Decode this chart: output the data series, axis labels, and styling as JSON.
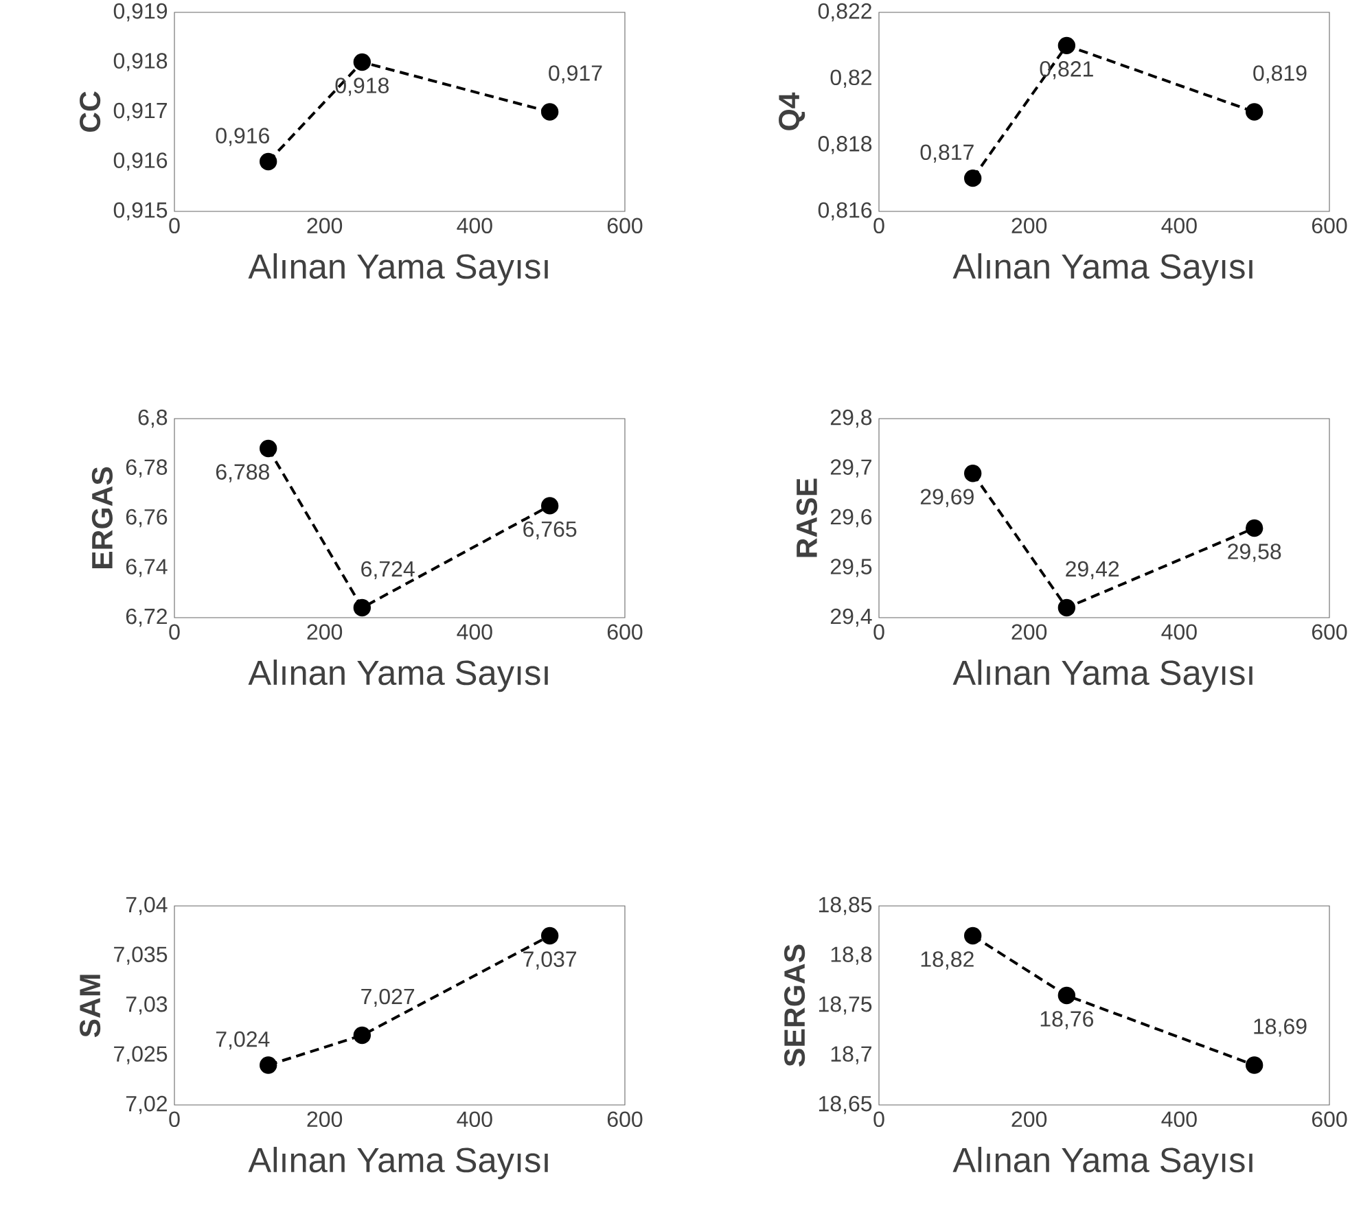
{
  "chart_data": [
    {
      "type": "line",
      "ylabel": "CC",
      "xlabel": "Alınan Yama Sayısı",
      "x": [
        125,
        250,
        500
      ],
      "values": [
        0.916,
        0.918,
        0.917
      ],
      "value_labels": [
        "0,916",
        "0,918",
        "0,917"
      ],
      "color": "#000000",
      "marker": "circle",
      "line_style": "dashed",
      "xlim": [
        0,
        600
      ],
      "xticks": [
        0,
        200,
        400,
        600
      ],
      "ylim": [
        0.915,
        0.919
      ],
      "yticks": [
        {
          "value": 0.915,
          "label": "0,915"
        },
        {
          "value": 0.916,
          "label": "0,916"
        },
        {
          "value": 0.917,
          "label": "0,917"
        },
        {
          "value": 0.918,
          "label": "0,918"
        },
        {
          "value": 0.919,
          "label": "0,919"
        }
      ]
    },
    {
      "type": "line",
      "ylabel": "Q4",
      "xlabel": "Alınan Yama Sayısı",
      "x": [
        125,
        250,
        500
      ],
      "values": [
        0.817,
        0.821,
        0.819
      ],
      "value_labels": [
        "0,817",
        "0,821",
        "0,819"
      ],
      "color": "#000000",
      "marker": "circle",
      "line_style": "dashed",
      "xlim": [
        0,
        600
      ],
      "xticks": [
        0,
        200,
        400,
        600
      ],
      "ylim": [
        0.816,
        0.822
      ],
      "yticks": [
        {
          "value": 0.816,
          "label": "0,816"
        },
        {
          "value": 0.818,
          "label": "0,818"
        },
        {
          "value": 0.82,
          "label": "0,82"
        },
        {
          "value": 0.822,
          "label": "0,822"
        }
      ]
    },
    {
      "type": "line",
      "ylabel": "ERGAS",
      "xlabel": "Alınan Yama Sayısı",
      "x": [
        125,
        250,
        500
      ],
      "values": [
        6.788,
        6.724,
        6.765
      ],
      "value_labels": [
        "6,788",
        "6,724",
        "6,765"
      ],
      "color": "#000000",
      "marker": "circle",
      "line_style": "dashed",
      "xlim": [
        0,
        600
      ],
      "xticks": [
        0,
        200,
        400,
        600
      ],
      "ylim": [
        6.72,
        6.8
      ],
      "yticks": [
        {
          "value": 6.72,
          "label": "6,72"
        },
        {
          "value": 6.74,
          "label": "6,74"
        },
        {
          "value": 6.76,
          "label": "6,76"
        },
        {
          "value": 6.78,
          "label": "6,78"
        },
        {
          "value": 6.8,
          "label": "6,8"
        }
      ]
    },
    {
      "type": "line",
      "ylabel": "RASE",
      "xlabel": "Alınan Yama Sayısı",
      "x": [
        125,
        250,
        500
      ],
      "values": [
        29.69,
        29.42,
        29.58
      ],
      "value_labels": [
        "29,69",
        "29,42",
        "29,58"
      ],
      "color": "#000000",
      "marker": "circle",
      "line_style": "dashed",
      "xlim": [
        0,
        600
      ],
      "xticks": [
        0,
        200,
        400,
        600
      ],
      "ylim": [
        29.4,
        29.8
      ],
      "yticks": [
        {
          "value": 29.4,
          "label": "29,4"
        },
        {
          "value": 29.5,
          "label": "29,5"
        },
        {
          "value": 29.6,
          "label": "29,6"
        },
        {
          "value": 29.7,
          "label": "29,7"
        },
        {
          "value": 29.8,
          "label": "29,8"
        }
      ]
    },
    {
      "type": "line",
      "ylabel": "SAM",
      "xlabel": "Alınan Yama Sayısı",
      "x": [
        125,
        250,
        500
      ],
      "values": [
        7.024,
        7.027,
        7.037
      ],
      "value_labels": [
        "7,024",
        "7,027",
        "7,037"
      ],
      "color": "#000000",
      "marker": "circle",
      "line_style": "dashed",
      "xlim": [
        0,
        600
      ],
      "xticks": [
        0,
        200,
        400,
        600
      ],
      "ylim": [
        7.02,
        7.04
      ],
      "yticks": [
        {
          "value": 7.02,
          "label": "7,02"
        },
        {
          "value": 7.025,
          "label": "7,025"
        },
        {
          "value": 7.03,
          "label": "7,03"
        },
        {
          "value": 7.035,
          "label": "7,035"
        },
        {
          "value": 7.04,
          "label": "7,04"
        }
      ]
    },
    {
      "type": "line",
      "ylabel": "SERGAS",
      "xlabel": "Alınan Yama Sayısı",
      "x": [
        125,
        250,
        500
      ],
      "values": [
        18.82,
        18.76,
        18.69
      ],
      "value_labels": [
        "18,82",
        "18,76",
        "18,69"
      ],
      "color": "#000000",
      "marker": "circle",
      "line_style": "dashed",
      "xlim": [
        0,
        600
      ],
      "xticks": [
        0,
        200,
        400,
        600
      ],
      "ylim": [
        18.65,
        18.85
      ],
      "yticks": [
        {
          "value": 18.65,
          "label": "18,65"
        },
        {
          "value": 18.7,
          "label": "18,7"
        },
        {
          "value": 18.75,
          "label": "18,75"
        },
        {
          "value": 18.8,
          "label": "18,8"
        },
        {
          "value": 18.85,
          "label": "18,85"
        }
      ]
    }
  ]
}
